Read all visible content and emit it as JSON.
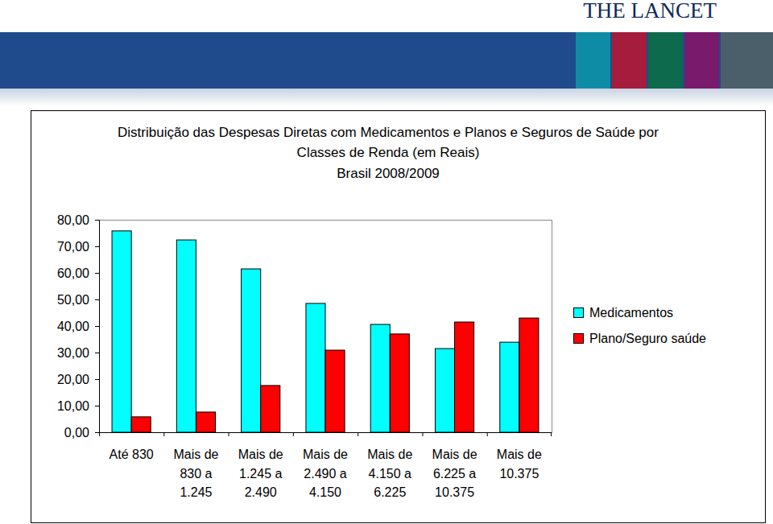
{
  "header": {
    "brand": "THE LANCET"
  },
  "chart_data": {
    "type": "bar",
    "title": "Distribuição das Despesas Diretas com Medicamentos e Planos e Seguros de Saúde por Classes de Renda (em Reais)",
    "subtitle": "Brasil 2008/2009",
    "categories": [
      "Até 830",
      "Mais de 830 a 1.245",
      "Mais de 1.245 a 2.490",
      "Mais de 2.490 a 4.150",
      "Mais de 4.150 a 6.225",
      "Mais de 6.225 a 10.375",
      "Mais de 10.375"
    ],
    "series": [
      {
        "name": "Medicamentos",
        "color": "#00ffff",
        "values": [
          75.8,
          72.4,
          61.5,
          48.5,
          40.6,
          31.5,
          33.9
        ]
      },
      {
        "name": "Plano/Seguro saúde",
        "color": "#ff0000",
        "values": [
          5.8,
          7.6,
          17.6,
          30.9,
          37.0,
          41.5,
          43.0
        ]
      }
    ],
    "ylim": [
      0,
      80
    ],
    "yticks": [
      {
        "value": 0,
        "label": "0,00"
      },
      {
        "value": 10,
        "label": "10,00"
      },
      {
        "value": 20,
        "label": "20,00"
      },
      {
        "value": 30,
        "label": "30,00"
      },
      {
        "value": 40,
        "label": "40,00"
      },
      {
        "value": 50,
        "label": "50,00"
      },
      {
        "value": 60,
        "label": "60,00"
      },
      {
        "value": 70,
        "label": "70,00"
      },
      {
        "value": 80,
        "label": "80,00"
      }
    ],
    "grid": false,
    "legend": "right"
  }
}
